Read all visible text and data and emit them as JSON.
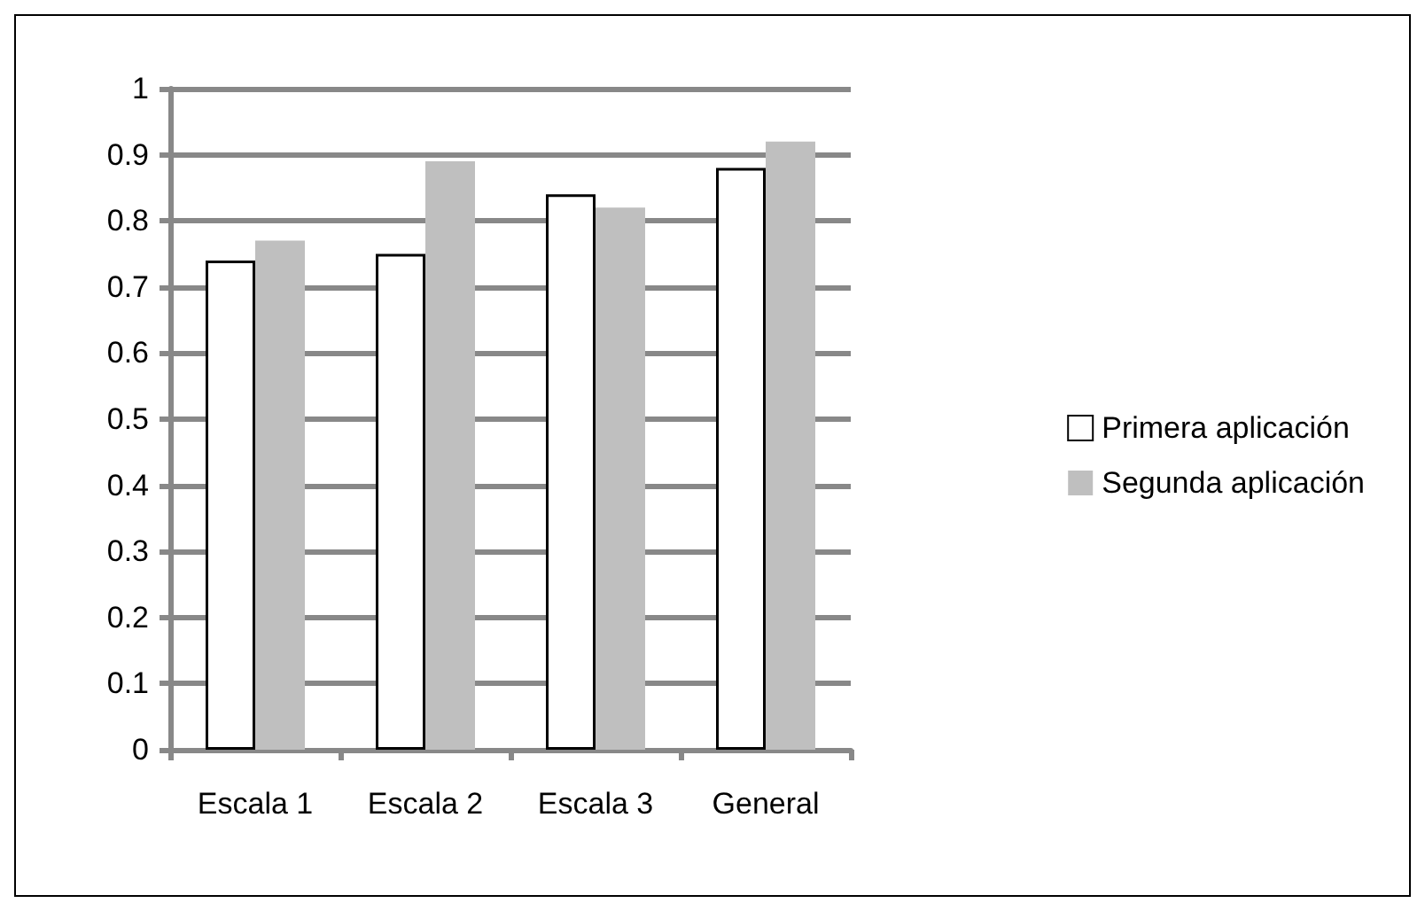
{
  "chart_data": {
    "type": "bar",
    "categories": [
      "Escala 1",
      "Escala 2",
      "Escala 3",
      "General"
    ],
    "series": [
      {
        "name": "Primera aplicación",
        "color": "#ffffff",
        "values": [
          0.74,
          0.75,
          0.84,
          0.88
        ]
      },
      {
        "name": "Segunda aplicación",
        "color": "#bfbfbf",
        "values": [
          0.77,
          0.89,
          0.82,
          0.92
        ]
      }
    ],
    "ylim": [
      0,
      1
    ],
    "yticks": [
      0,
      0.1,
      0.2,
      0.3,
      0.4,
      0.5,
      0.6,
      0.7,
      0.8,
      0.9,
      1
    ],
    "grid": "y",
    "legend": "right"
  }
}
